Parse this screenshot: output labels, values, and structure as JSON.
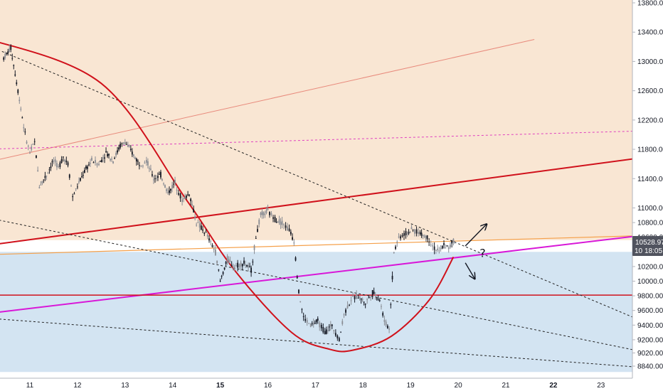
{
  "chart_data": {
    "type": "candlestick",
    "title": "",
    "xlabel": "",
    "ylabel": "",
    "ylim": [
      8760,
      13900
    ],
    "grid": false,
    "x_ticks": [
      {
        "label": "11",
        "day": 11,
        "bold": false
      },
      {
        "label": "12",
        "day": 12,
        "bold": false
      },
      {
        "label": "13",
        "day": 13,
        "bold": false
      },
      {
        "label": "14",
        "day": 14,
        "bold": false
      },
      {
        "label": "15",
        "day": 15,
        "bold": true
      },
      {
        "label": "16",
        "day": 16,
        "bold": false
      },
      {
        "label": "17",
        "day": 17,
        "bold": false
      },
      {
        "label": "18",
        "day": 18,
        "bold": false
      },
      {
        "label": "19",
        "day": 19,
        "bold": false
      },
      {
        "label": "20",
        "day": 20,
        "bold": false
      },
      {
        "label": "21",
        "day": 21,
        "bold": false
      },
      {
        "label": "22",
        "day": 22,
        "bold": true
      },
      {
        "label": "23",
        "day": 23,
        "bold": false
      }
    ],
    "y_ticks": [
      13800,
      13400,
      13000,
      12600,
      12200,
      11800,
      11400,
      11000,
      10800,
      10600,
      10200,
      10000,
      9800,
      9600,
      9400,
      9200,
      9020,
      8840
    ],
    "y_tick_labels": [
      "13800.00",
      "13400.00",
      "13000.00",
      "12600.00",
      "12200.00",
      "11800.00",
      "11400.00",
      "11000.00",
      "10800.00",
      "10600.00",
      "10200.00",
      "10000.00",
      "9800.00",
      "9600.00",
      "9400.00",
      "9200.00",
      "9020.00",
      "8840.00"
    ],
    "last_price": {
      "value": 10528.97,
      "label": "10528.97",
      "countdown": "18:05",
      "partial_tick": "10"
    },
    "price_path": [
      [
        10.45,
        13050
      ],
      [
        10.6,
        13180
      ],
      [
        10.75,
        12600
      ],
      [
        10.9,
        12000
      ],
      [
        11.0,
        11750
      ],
      [
        11.1,
        11900
      ],
      [
        11.2,
        11300
      ],
      [
        11.35,
        11450
      ],
      [
        11.5,
        11650
      ],
      [
        11.6,
        11550
      ],
      [
        11.7,
        11700
      ],
      [
        11.8,
        11600
      ],
      [
        11.9,
        11150
      ],
      [
        12.0,
        11300
      ],
      [
        12.15,
        11500
      ],
      [
        12.3,
        11650
      ],
      [
        12.45,
        11600
      ],
      [
        12.6,
        11750
      ],
      [
        12.75,
        11650
      ],
      [
        12.9,
        11850
      ],
      [
        13.0,
        11900
      ],
      [
        13.15,
        11750
      ],
      [
        13.3,
        11600
      ],
      [
        13.45,
        11650
      ],
      [
        13.6,
        11400
      ],
      [
        13.75,
        11450
      ],
      [
        13.9,
        11200
      ],
      [
        14.05,
        11350
      ],
      [
        14.2,
        11100
      ],
      [
        14.35,
        11200
      ],
      [
        14.5,
        10800
      ],
      [
        14.7,
        10650
      ],
      [
        14.9,
        10400
      ],
      [
        15.0,
        10000
      ],
      [
        15.15,
        10300
      ],
      [
        15.3,
        10200
      ],
      [
        15.5,
        10250
      ],
      [
        15.65,
        10150
      ],
      [
        15.75,
        10600
      ],
      [
        15.85,
        10900
      ],
      [
        16.0,
        10950
      ],
      [
        16.15,
        10850
      ],
      [
        16.3,
        10800
      ],
      [
        16.45,
        10700
      ],
      [
        16.55,
        10550
      ],
      [
        16.65,
        9850
      ],
      [
        16.75,
        9500
      ],
      [
        16.9,
        9400
      ],
      [
        17.05,
        9450
      ],
      [
        17.2,
        9300
      ],
      [
        17.35,
        9400
      ],
      [
        17.5,
        9200
      ],
      [
        17.6,
        9550
      ],
      [
        17.75,
        9750
      ],
      [
        17.9,
        9800
      ],
      [
        18.05,
        9700
      ],
      [
        18.2,
        9850
      ],
      [
        18.35,
        9750
      ],
      [
        18.45,
        9450
      ],
      [
        18.55,
        9350
      ],
      [
        18.65,
        10400
      ],
      [
        18.75,
        10600
      ],
      [
        18.9,
        10650
      ],
      [
        19.05,
        10700
      ],
      [
        19.2,
        10650
      ],
      [
        19.35,
        10600
      ],
      [
        19.5,
        10450
      ],
      [
        19.6,
        10400
      ],
      [
        19.7,
        10500
      ],
      [
        19.8,
        10450
      ],
      [
        19.9,
        10550
      ],
      [
        19.95,
        10528.97
      ]
    ],
    "trendlines": [
      {
        "name": "thin-red-up",
        "from": [
          10.0,
          11610
        ],
        "to": [
          21.6,
          13300
        ],
        "color": "#e88a7c",
        "width": 1,
        "dash": ""
      },
      {
        "name": "pink-dash",
        "from": [
          10.0,
          11800
        ],
        "to": [
          23.8,
          12050
        ],
        "color": "#e040c0",
        "width": 1,
        "dash": "3,3"
      },
      {
        "name": "thick-red-up",
        "from": [
          10.0,
          10480
        ],
        "to": [
          23.8,
          11680
        ],
        "color": "#d0111b",
        "width": 2,
        "dash": ""
      },
      {
        "name": "orange",
        "from": [
          10.0,
          10360
        ],
        "to": [
          23.8,
          10620
        ],
        "color": "#f5a04a",
        "width": 1.2,
        "dash": ""
      },
      {
        "name": "magenta",
        "from": [
          10.0,
          9550
        ],
        "to": [
          23.8,
          10620
        ],
        "color": "#d817d8",
        "width": 2,
        "dash": ""
      },
      {
        "name": "red-horizontal",
        "from": [
          10.0,
          9810
        ],
        "to": [
          23.8,
          9810
        ],
        "color": "#d0111b",
        "width": 1.5,
        "dash": ""
      },
      {
        "name": "dash-a",
        "from": [
          10.0,
          13250
        ],
        "to": [
          23.7,
          9500
        ],
        "color": "#222222",
        "width": 1,
        "dash": "3,3"
      },
      {
        "name": "dash-b",
        "from": [
          10.0,
          10880
        ],
        "to": [
          23.7,
          9060
        ],
        "color": "#222222",
        "width": 1,
        "dash": "3,3"
      },
      {
        "name": "dash-c",
        "from": [
          10.0,
          9500
        ],
        "to": [
          23.7,
          8830
        ],
        "color": "#222222",
        "width": 1,
        "dash": "3,3"
      }
    ],
    "cup_arc": {
      "points": [
        [
          10.0,
          13330
        ],
        [
          12.5,
          12700
        ],
        [
          14.3,
          11100
        ],
        [
          15.3,
          10150
        ],
        [
          16.5,
          9300
        ],
        [
          17.3,
          9070
        ],
        [
          17.8,
          9060
        ],
        [
          18.6,
          9250
        ],
        [
          19.4,
          9750
        ],
        [
          19.9,
          10330
        ]
      ],
      "color": "#d0111b"
    },
    "zones": [
      {
        "name": "upper-zone",
        "from": 13900,
        "to": 10560,
        "color": "#f9e6d3"
      },
      {
        "name": "lower-zone",
        "from": 10400,
        "to": 8760,
        "color": "#d3e4f2"
      }
    ],
    "arrows": [
      {
        "name": "arrow-up",
        "from": [
          20.15,
          10480
        ],
        "to": [
          20.6,
          10780
        ]
      },
      {
        "name": "arrow-down",
        "from": [
          20.15,
          10250
        ],
        "to": [
          20.35,
          10030
        ]
      }
    ],
    "annotations": [
      {
        "text": "?",
        "day": 20.45,
        "price": 10330
      }
    ]
  }
}
